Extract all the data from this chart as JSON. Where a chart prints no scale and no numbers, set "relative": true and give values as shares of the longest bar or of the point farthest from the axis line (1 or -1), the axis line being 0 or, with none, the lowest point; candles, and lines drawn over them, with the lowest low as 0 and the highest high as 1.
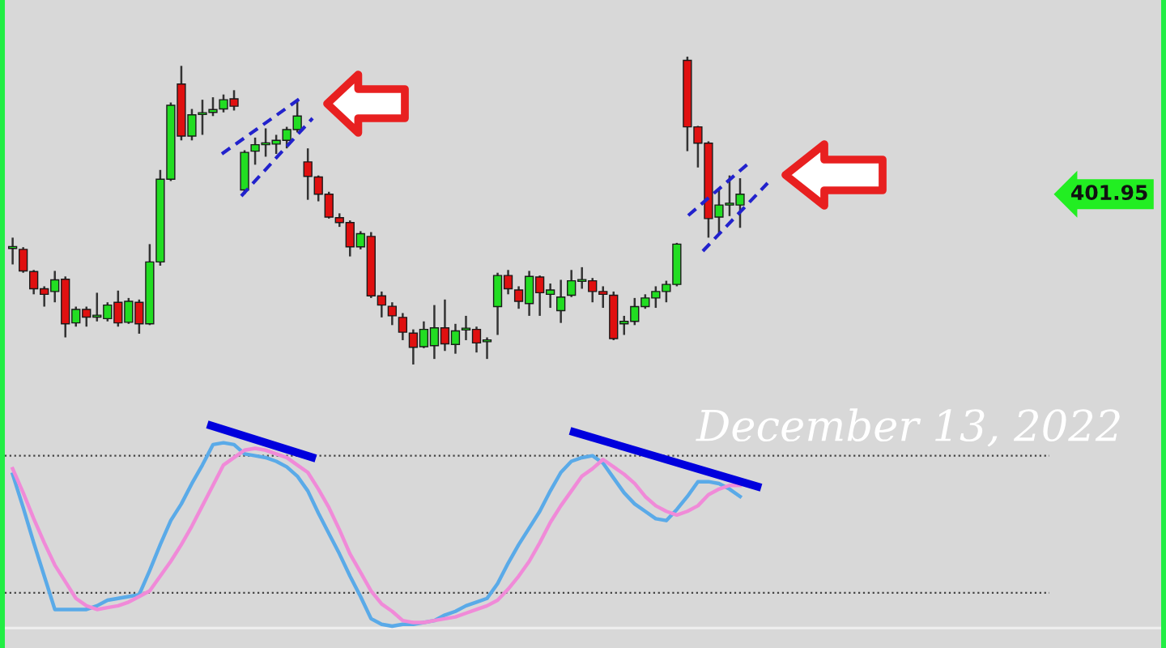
{
  "chart_data": [
    {
      "type": "candlestick",
      "relative": true,
      "categories": [
        null,
        null,
        null,
        null,
        null,
        null,
        null,
        null,
        null,
        null,
        null,
        null,
        null,
        null,
        null,
        null,
        null,
        null,
        null,
        null,
        null,
        null,
        null,
        null,
        null,
        null,
        null,
        null,
        null,
        null,
        null,
        null,
        null,
        null,
        null,
        null,
        null,
        null,
        null,
        null,
        null,
        null,
        null,
        null,
        null,
        null,
        null,
        null,
        null,
        null,
        null,
        null,
        null,
        null,
        null,
        null,
        null,
        null,
        null,
        null,
        null,
        null,
        null,
        null,
        null,
        null,
        null,
        null,
        null,
        null
      ],
      "ohlc": [
        [
          0.377,
          0.412,
          0.325,
          0.381
        ],
        [
          0.374,
          0.381,
          0.298,
          0.304
        ],
        [
          0.302,
          0.307,
          0.228,
          0.246
        ],
        [
          0.246,
          0.254,
          0.188,
          0.228
        ],
        [
          0.237,
          0.304,
          0.202,
          0.275
        ],
        [
          0.277,
          0.286,
          0.088,
          0.132
        ],
        [
          0.135,
          0.188,
          0.123,
          0.179
        ],
        [
          0.179,
          0.188,
          0.123,
          0.154
        ],
        [
          0.154,
          0.233,
          0.14,
          0.156
        ],
        [
          0.149,
          0.202,
          0.14,
          0.193
        ],
        [
          0.202,
          0.24,
          0.123,
          0.135
        ],
        [
          0.137,
          0.216,
          0.132,
          0.205
        ],
        [
          0.202,
          0.211,
          0.1,
          0.132
        ],
        [
          0.132,
          0.391,
          0.128,
          0.333
        ],
        [
          0.333,
          0.632,
          0.321,
          0.602
        ],
        [
          0.602,
          0.851,
          0.596,
          0.842
        ],
        [
          0.911,
          0.97,
          0.728,
          0.742
        ],
        [
          0.742,
          0.83,
          0.728,
          0.811
        ],
        [
          0.812,
          0.86,
          0.746,
          0.814
        ],
        [
          0.819,
          0.868,
          0.807,
          0.828
        ],
        [
          0.83,
          0.877,
          0.819,
          0.86
        ],
        [
          0.863,
          0.891,
          0.825,
          0.839
        ],
        [
          0.567,
          0.696,
          0.553,
          0.689
        ],
        [
          0.693,
          0.737,
          0.649,
          0.714
        ],
        [
          0.714,
          0.767,
          0.675,
          0.718
        ],
        [
          0.716,
          0.746,
          0.684,
          0.728
        ],
        [
          0.728,
          0.772,
          0.702,
          0.763
        ],
        [
          0.763,
          0.86,
          0.754,
          0.807
        ],
        [
          0.658,
          0.702,
          0.535,
          0.611
        ],
        [
          0.609,
          0.614,
          0.53,
          0.553
        ],
        [
          0.553,
          0.561,
          0.474,
          0.479
        ],
        [
          0.477,
          0.491,
          0.447,
          0.461
        ],
        [
          0.461,
          0.468,
          0.351,
          0.382
        ],
        [
          0.382,
          0.433,
          0.374,
          0.425
        ],
        [
          0.416,
          0.43,
          0.216,
          0.223
        ],
        [
          0.223,
          0.237,
          0.153,
          0.193
        ],
        [
          0.189,
          0.202,
          0.128,
          0.158
        ],
        [
          0.153,
          0.167,
          0.079,
          0.105
        ],
        [
          0.102,
          0.114,
          0,
          0.056
        ],
        [
          0.058,
          0.14,
          0.053,
          0.114
        ],
        [
          0.061,
          0.193,
          0.018,
          0.119
        ],
        [
          0.119,
          0.211,
          0.044,
          0.067
        ],
        [
          0.065,
          0.132,
          0.035,
          0.109
        ],
        [
          0.112,
          0.158,
          0.079,
          0.116
        ],
        [
          0.114,
          0.123,
          0.039,
          0.07
        ],
        [
          0.074,
          0.088,
          0.018,
          0.075
        ],
        [
          0.188,
          0.298,
          0.096,
          0.289
        ],
        [
          0.289,
          0.307,
          0.228,
          0.246
        ],
        [
          0.242,
          0.254,
          0.181,
          0.205
        ],
        [
          0.198,
          0.304,
          0.158,
          0.286
        ],
        [
          0.284,
          0.289,
          0.158,
          0.233
        ],
        [
          0.228,
          0.263,
          0.184,
          0.242
        ],
        [
          0.175,
          0.275,
          0.135,
          0.219
        ],
        [
          0.225,
          0.307,
          0.219,
          0.272
        ],
        [
          0.27,
          0.316,
          0.246,
          0.274
        ],
        [
          0.272,
          0.281,
          0.202,
          0.237
        ],
        [
          0.237,
          0.254,
          0.184,
          0.228
        ],
        [
          0.225,
          0.237,
          0.079,
          0.084
        ],
        [
          0.132,
          0.158,
          0.096,
          0.14
        ],
        [
          0.14,
          0.216,
          0.128,
          0.188
        ],
        [
          0.188,
          0.228,
          0.181,
          0.216
        ],
        [
          0.216,
          0.254,
          0.184,
          0.237
        ],
        [
          0.237,
          0.272,
          0.202,
          0.26
        ],
        [
          0.26,
          0.395,
          0.254,
          0.391
        ],
        [
          0.988,
          1,
          0.693,
          0.772
        ],
        [
          0.772,
          0.775,
          0.64,
          0.719
        ],
        [
          0.719,
          0.725,
          0.412,
          0.474
        ],
        [
          0.479,
          0.567,
          0.421,
          0.518
        ],
        [
          0.518,
          0.614,
          0.482,
          0.519
        ],
        [
          0.518,
          0.605,
          0.444,
          0.553
        ]
      ],
      "annotations": [
        "401.95"
      ]
    },
    {
      "type": "line",
      "relative": true,
      "categories": [
        null,
        null,
        null,
        null,
        null,
        null,
        null,
        null,
        null,
        null,
        null,
        null,
        null,
        null,
        null,
        null,
        null,
        null,
        null,
        null,
        null,
        null,
        null,
        null,
        null,
        null,
        null,
        null,
        null,
        null,
        null,
        null,
        null,
        null,
        null,
        null,
        null,
        null,
        null,
        null,
        null,
        null,
        null,
        null,
        null,
        null,
        null,
        null,
        null,
        null,
        null,
        null,
        null,
        null,
        null,
        null,
        null,
        null,
        null,
        null,
        null,
        null,
        null,
        null,
        null,
        null,
        null,
        null,
        null,
        null
      ],
      "series": [
        {
          "color": "#5aaae8",
          "values": [
            0.83,
            0.65,
            0.46,
            0.28,
            0.1,
            0.1,
            0.1,
            0.1,
            0.12,
            0.15,
            0.16,
            0.17,
            0.18,
            0.31,
            0.45,
            0.58,
            0.67,
            0.78,
            0.88,
            0.99,
            1.0,
            0.99,
            0.94,
            0.93,
            0.92,
            0.9,
            0.87,
            0.82,
            0.74,
            0.62,
            0.51,
            0.4,
            0.28,
            0.17,
            0.05,
            0.02,
            0.01,
            0.02,
            0.02,
            0.03,
            0.04,
            0.07,
            0.09,
            0.12,
            0.14,
            0.16,
            0.24,
            0.35,
            0.45,
            0.54,
            0.63,
            0.74,
            0.84,
            0.9,
            0.92,
            0.93,
            0.89,
            0.81,
            0.73,
            0.67,
            0.63,
            0.59,
            0.58,
            0.64,
            0.71,
            0.79,
            0.79,
            0.78,
            0.75,
            0.71
          ]
        },
        {
          "color": "#f08ad8",
          "values": [
            0.86,
            0.73,
            0.59,
            0.46,
            0.34,
            0.25,
            0.16,
            0.12,
            0.1,
            0.11,
            0.12,
            0.14,
            0.17,
            0.2,
            0.28,
            0.36,
            0.45,
            0.55,
            0.66,
            0.77,
            0.88,
            0.92,
            0.96,
            0.97,
            0.96,
            0.94,
            0.92,
            0.88,
            0.84,
            0.75,
            0.65,
            0.53,
            0.4,
            0.3,
            0.2,
            0.13,
            0.09,
            0.04,
            0.03,
            0.03,
            0.04,
            0.05,
            0.06,
            0.08,
            0.1,
            0.12,
            0.15,
            0.21,
            0.28,
            0.36,
            0.46,
            0.57,
            0.66,
            0.74,
            0.82,
            0.86,
            0.91,
            0.87,
            0.83,
            0.78,
            0.71,
            0.66,
            0.63,
            0.61,
            0.63,
            0.66,
            0.72,
            0.75,
            0.77,
            0.77
          ]
        }
      ],
      "ref_lines": [
        {
          "axis": "y",
          "value": 0.93,
          "color": "#444444",
          "line_style": "dotted"
        },
        {
          "axis": "y",
          "value": 0.19,
          "color": "#444444",
          "line_style": "dotted"
        }
      ],
      "annotations": [
        "December 13, 2022"
      ]
    }
  ]
}
